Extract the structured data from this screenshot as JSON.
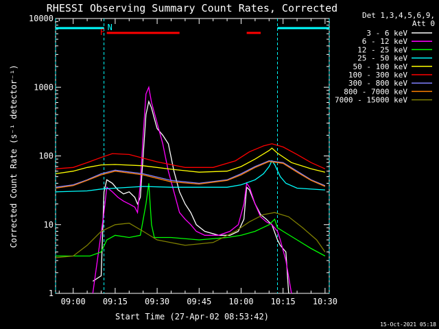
{
  "chart_data": {
    "type": "line",
    "title": "RHESSI Observing Summary Count Rates, Corrected",
    "xlabel": "Start Time (27-Apr-02 08:53:42)",
    "ylabel": "Corrected Count Rate (s⁻¹ detector⁻¹)",
    "y_scale": "log",
    "xlim": [
      "08:53:42",
      "10:31:30"
    ],
    "ylim": [
      1,
      10000
    ],
    "x_ticks": [
      "09:00",
      "09:15",
      "09:30",
      "09:45",
      "10:00",
      "10:15",
      "10:30"
    ],
    "y_ticks": [
      "1",
      "10",
      "100",
      "1000",
      "10000"
    ],
    "legend_header": [
      "Det 1,3,4,5,6,9,",
      "Att 0"
    ],
    "legend_position": "right",
    "footer_stamp": "15-Oct-2021 05:18",
    "flags": {
      "F_label": "F",
      "N_label": "N",
      "night_intervals": [
        [
          "08:53:42",
          "09:11:00"
        ],
        [
          "10:13:00",
          "10:31:30"
        ]
      ],
      "flare_intervals": [
        [
          "09:12:00",
          "09:38:00"
        ],
        [
          "10:02:00",
          "10:07:00"
        ]
      ],
      "night_color": "#00FFFF",
      "flare_color": "#FF0000"
    },
    "series": [
      {
        "name": "3 - 6 keV",
        "color": "#FFFFFF",
        "points": [
          [
            "09:07",
            1.5
          ],
          [
            "09:10",
            1.8
          ],
          [
            "09:11",
            30
          ],
          [
            "09:12",
            45
          ],
          [
            "09:14",
            40
          ],
          [
            "09:16",
            32
          ],
          [
            "09:18",
            28
          ],
          [
            "09:20",
            30
          ],
          [
            "09:22",
            25
          ],
          [
            "09:23",
            20
          ],
          [
            "09:24",
            25
          ],
          [
            "09:25",
            100
          ],
          [
            "09:26",
            400
          ],
          [
            "09:27",
            620
          ],
          [
            "09:28",
            500
          ],
          [
            "09:29",
            350
          ],
          [
            "09:30",
            250
          ],
          [
            "09:32",
            200
          ],
          [
            "09:34",
            150
          ],
          [
            "09:36",
            60
          ],
          [
            "09:38",
            30
          ],
          [
            "09:40",
            20
          ],
          [
            "09:42",
            15
          ],
          [
            "09:44",
            10
          ],
          [
            "09:47",
            8
          ],
          [
            "09:52",
            7
          ],
          [
            "09:56",
            7
          ],
          [
            "09:59",
            8
          ],
          [
            "10:01",
            12
          ],
          [
            "10:02",
            35
          ],
          [
            "10:03",
            32
          ],
          [
            "10:05",
            20
          ],
          [
            "10:07",
            14
          ],
          [
            "10:09",
            12
          ],
          [
            "10:11",
            10
          ],
          [
            "10:13",
            6
          ],
          [
            "10:14",
            5
          ],
          [
            "10:16",
            4
          ],
          [
            "10:17",
            1
          ]
        ]
      },
      {
        "name": "6 - 12 keV",
        "color": "#FF00FF",
        "points": [
          [
            "09:07",
            1
          ],
          [
            "09:11",
            15
          ],
          [
            "09:12",
            35
          ],
          [
            "09:14",
            30
          ],
          [
            "09:16",
            25
          ],
          [
            "09:18",
            22
          ],
          [
            "09:20",
            20
          ],
          [
            "09:22",
            18
          ],
          [
            "09:23",
            15
          ],
          [
            "09:24",
            40
          ],
          [
            "09:25",
            200
          ],
          [
            "09:26",
            800
          ],
          [
            "09:27",
            1000
          ],
          [
            "09:28",
            600
          ],
          [
            "09:30",
            300
          ],
          [
            "09:32",
            150
          ],
          [
            "09:34",
            60
          ],
          [
            "09:36",
            30
          ],
          [
            "09:38",
            15
          ],
          [
            "09:40",
            12
          ],
          [
            "09:42",
            10
          ],
          [
            "09:44",
            8
          ],
          [
            "09:47",
            7
          ],
          [
            "09:52",
            7
          ],
          [
            "09:56",
            8
          ],
          [
            "09:59",
            10
          ],
          [
            "10:01",
            20
          ],
          [
            "10:02",
            40
          ],
          [
            "10:03",
            35
          ],
          [
            "10:05",
            20
          ],
          [
            "10:07",
            13
          ],
          [
            "10:09",
            11
          ],
          [
            "10:11",
            10
          ],
          [
            "10:13",
            8
          ],
          [
            "10:14",
            6
          ],
          [
            "10:16",
            3
          ],
          [
            "10:18",
            1
          ]
        ]
      },
      {
        "name": "12 - 25 keV",
        "color": "#00FF00",
        "points": [
          [
            "08:53:42",
            3.5
          ],
          [
            "09:06",
            3.5
          ],
          [
            "09:10",
            4
          ],
          [
            "09:12",
            6
          ],
          [
            "09:15",
            7
          ],
          [
            "09:20",
            6.5
          ],
          [
            "09:24",
            7
          ],
          [
            "09:26",
            20
          ],
          [
            "09:27",
            40
          ],
          [
            "09:28",
            10
          ],
          [
            "09:29",
            6.5
          ],
          [
            "09:35",
            6.5
          ],
          [
            "09:45",
            6
          ],
          [
            "09:55",
            6.5
          ],
          [
            "10:00",
            7
          ],
          [
            "10:05",
            8
          ],
          [
            "10:10",
            10
          ],
          [
            "10:12",
            12
          ],
          [
            "10:13",
            9
          ],
          [
            "10:15",
            8
          ],
          [
            "10:20",
            6
          ],
          [
            "10:25",
            4.5
          ],
          [
            "10:30",
            3.5
          ]
        ]
      },
      {
        "name": "25 - 50 keV",
        "color": "#00FFFF",
        "points": [
          [
            "08:53:42",
            30
          ],
          [
            "09:05",
            31
          ],
          [
            "09:10",
            33
          ],
          [
            "09:15",
            34
          ],
          [
            "09:25",
            36
          ],
          [
            "09:35",
            35
          ],
          [
            "09:45",
            35
          ],
          [
            "09:55",
            35
          ],
          [
            "10:00",
            38
          ],
          [
            "10:05",
            45
          ],
          [
            "10:08",
            55
          ],
          [
            "10:10",
            70
          ],
          [
            "10:11",
            85
          ],
          [
            "10:12",
            75
          ],
          [
            "10:14",
            50
          ],
          [
            "10:16",
            40
          ],
          [
            "10:20",
            34
          ],
          [
            "10:30",
            32
          ]
        ]
      },
      {
        "name": "50 - 100 keV",
        "color": "#FFFF00",
        "points": [
          [
            "08:53:42",
            55
          ],
          [
            "09:00",
            60
          ],
          [
            "09:05",
            68
          ],
          [
            "09:10",
            74
          ],
          [
            "09:15",
            75
          ],
          [
            "09:25",
            72
          ],
          [
            "09:35",
            64
          ],
          [
            "09:45",
            58
          ],
          [
            "09:55",
            60
          ],
          [
            "10:00",
            70
          ],
          [
            "10:05",
            90
          ],
          [
            "10:10",
            120
          ],
          [
            "10:11",
            130
          ],
          [
            "10:13",
            110
          ],
          [
            "10:18",
            80
          ],
          [
            "10:25",
            65
          ],
          [
            "10:30",
            58
          ]
        ]
      },
      {
        "name": "100 - 300 keV",
        "color": "#FF0000",
        "points": [
          [
            "08:53:42",
            65
          ],
          [
            "09:00",
            68
          ],
          [
            "09:05",
            80
          ],
          [
            "09:10",
            95
          ],
          [
            "09:14",
            108
          ],
          [
            "09:20",
            105
          ],
          [
            "09:30",
            82
          ],
          [
            "09:40",
            68
          ],
          [
            "09:50",
            68
          ],
          [
            "09:58",
            85
          ],
          [
            "10:03",
            115
          ],
          [
            "10:08",
            140
          ],
          [
            "10:11",
            150
          ],
          [
            "10:15",
            135
          ],
          [
            "10:20",
            105
          ],
          [
            "10:25",
            80
          ],
          [
            "10:30",
            65
          ]
        ]
      },
      {
        "name": "300 - 800 keV",
        "color": "#8080FF",
        "points": [
          [
            "08:53:42",
            35
          ],
          [
            "09:00",
            38
          ],
          [
            "09:05",
            45
          ],
          [
            "09:10",
            55
          ],
          [
            "09:15",
            62
          ],
          [
            "09:25",
            55
          ],
          [
            "09:35",
            44
          ],
          [
            "09:45",
            40
          ],
          [
            "09:55",
            45
          ],
          [
            "10:00",
            55
          ],
          [
            "10:05",
            70
          ],
          [
            "10:10",
            85
          ],
          [
            "10:15",
            80
          ],
          [
            "10:20",
            60
          ],
          [
            "10:25",
            45
          ],
          [
            "10:30",
            37
          ]
        ]
      },
      {
        "name": "800 - 7000 keV",
        "color": "#FF8000",
        "points": [
          [
            "08:53:42",
            34
          ],
          [
            "09:00",
            37
          ],
          [
            "09:05",
            44
          ],
          [
            "09:10",
            53
          ],
          [
            "09:15",
            60
          ],
          [
            "09:25",
            53
          ],
          [
            "09:35",
            42
          ],
          [
            "09:45",
            39
          ],
          [
            "09:55",
            44
          ],
          [
            "10:00",
            53
          ],
          [
            "10:05",
            68
          ],
          [
            "10:10",
            83
          ],
          [
            "10:15",
            78
          ],
          [
            "10:20",
            58
          ],
          [
            "10:25",
            44
          ],
          [
            "10:30",
            36
          ]
        ]
      },
      {
        "name": "7000 - 15000 keV",
        "color": "#808000",
        "points": [
          [
            "08:53:42",
            3.3
          ],
          [
            "09:00",
            3.5
          ],
          [
            "09:05",
            5
          ],
          [
            "09:10",
            8
          ],
          [
            "09:15",
            10
          ],
          [
            "09:20",
            10.5
          ],
          [
            "09:25",
            8
          ],
          [
            "09:30",
            6
          ],
          [
            "09:40",
            5
          ],
          [
            "09:50",
            5.5
          ],
          [
            "09:58",
            8
          ],
          [
            "10:03",
            11
          ],
          [
            "10:08",
            14
          ],
          [
            "10:12",
            15
          ],
          [
            "10:17",
            13
          ],
          [
            "10:22",
            9
          ],
          [
            "10:27",
            6
          ],
          [
            "10:30",
            4
          ]
        ]
      }
    ]
  }
}
